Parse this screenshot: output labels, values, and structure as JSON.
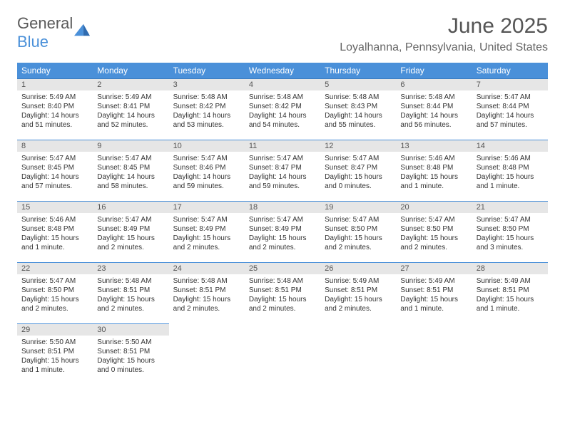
{
  "logo": {
    "text_general": "General",
    "text_blue": "Blue",
    "tri_color": "#4a90d9"
  },
  "header": {
    "month": "June 2025",
    "location": "Loyalhanna, Pennsylvania, United States"
  },
  "colors": {
    "header_bg": "#4a90d9",
    "header_text": "#ffffff",
    "daynum_bg": "#e6e6e6",
    "border": "#4a90d9",
    "body_text": "#333333"
  },
  "weekdays": [
    "Sunday",
    "Monday",
    "Tuesday",
    "Wednesday",
    "Thursday",
    "Friday",
    "Saturday"
  ],
  "days": [
    {
      "n": "1",
      "sr": "5:49 AM",
      "ss": "8:40 PM",
      "dl": "14 hours and 51 minutes."
    },
    {
      "n": "2",
      "sr": "5:49 AM",
      "ss": "8:41 PM",
      "dl": "14 hours and 52 minutes."
    },
    {
      "n": "3",
      "sr": "5:48 AM",
      "ss": "8:42 PM",
      "dl": "14 hours and 53 minutes."
    },
    {
      "n": "4",
      "sr": "5:48 AM",
      "ss": "8:42 PM",
      "dl": "14 hours and 54 minutes."
    },
    {
      "n": "5",
      "sr": "5:48 AM",
      "ss": "8:43 PM",
      "dl": "14 hours and 55 minutes."
    },
    {
      "n": "6",
      "sr": "5:48 AM",
      "ss": "8:44 PM",
      "dl": "14 hours and 56 minutes."
    },
    {
      "n": "7",
      "sr": "5:47 AM",
      "ss": "8:44 PM",
      "dl": "14 hours and 57 minutes."
    },
    {
      "n": "8",
      "sr": "5:47 AM",
      "ss": "8:45 PM",
      "dl": "14 hours and 57 minutes."
    },
    {
      "n": "9",
      "sr": "5:47 AM",
      "ss": "8:45 PM",
      "dl": "14 hours and 58 minutes."
    },
    {
      "n": "10",
      "sr": "5:47 AM",
      "ss": "8:46 PM",
      "dl": "14 hours and 59 minutes."
    },
    {
      "n": "11",
      "sr": "5:47 AM",
      "ss": "8:47 PM",
      "dl": "14 hours and 59 minutes."
    },
    {
      "n": "12",
      "sr": "5:47 AM",
      "ss": "8:47 PM",
      "dl": "15 hours and 0 minutes."
    },
    {
      "n": "13",
      "sr": "5:46 AM",
      "ss": "8:48 PM",
      "dl": "15 hours and 1 minute."
    },
    {
      "n": "14",
      "sr": "5:46 AM",
      "ss": "8:48 PM",
      "dl": "15 hours and 1 minute."
    },
    {
      "n": "15",
      "sr": "5:46 AM",
      "ss": "8:48 PM",
      "dl": "15 hours and 1 minute."
    },
    {
      "n": "16",
      "sr": "5:47 AM",
      "ss": "8:49 PM",
      "dl": "15 hours and 2 minutes."
    },
    {
      "n": "17",
      "sr": "5:47 AM",
      "ss": "8:49 PM",
      "dl": "15 hours and 2 minutes."
    },
    {
      "n": "18",
      "sr": "5:47 AM",
      "ss": "8:49 PM",
      "dl": "15 hours and 2 minutes."
    },
    {
      "n": "19",
      "sr": "5:47 AM",
      "ss": "8:50 PM",
      "dl": "15 hours and 2 minutes."
    },
    {
      "n": "20",
      "sr": "5:47 AM",
      "ss": "8:50 PM",
      "dl": "15 hours and 2 minutes."
    },
    {
      "n": "21",
      "sr": "5:47 AM",
      "ss": "8:50 PM",
      "dl": "15 hours and 3 minutes."
    },
    {
      "n": "22",
      "sr": "5:47 AM",
      "ss": "8:50 PM",
      "dl": "15 hours and 2 minutes."
    },
    {
      "n": "23",
      "sr": "5:48 AM",
      "ss": "8:51 PM",
      "dl": "15 hours and 2 minutes."
    },
    {
      "n": "24",
      "sr": "5:48 AM",
      "ss": "8:51 PM",
      "dl": "15 hours and 2 minutes."
    },
    {
      "n": "25",
      "sr": "5:48 AM",
      "ss": "8:51 PM",
      "dl": "15 hours and 2 minutes."
    },
    {
      "n": "26",
      "sr": "5:49 AM",
      "ss": "8:51 PM",
      "dl": "15 hours and 2 minutes."
    },
    {
      "n": "27",
      "sr": "5:49 AM",
      "ss": "8:51 PM",
      "dl": "15 hours and 1 minute."
    },
    {
      "n": "28",
      "sr": "5:49 AM",
      "ss": "8:51 PM",
      "dl": "15 hours and 1 minute."
    },
    {
      "n": "29",
      "sr": "5:50 AM",
      "ss": "8:51 PM",
      "dl": "15 hours and 1 minute."
    },
    {
      "n": "30",
      "sr": "5:50 AM",
      "ss": "8:51 PM",
      "dl": "15 hours and 0 minutes."
    }
  ],
  "labels": {
    "sunrise": "Sunrise: ",
    "sunset": "Sunset: ",
    "daylight": "Daylight: "
  },
  "layout": {
    "start_weekday_index": 0,
    "total_days": 30,
    "fontsize_daytext": 10,
    "fontsize_th": 12
  }
}
